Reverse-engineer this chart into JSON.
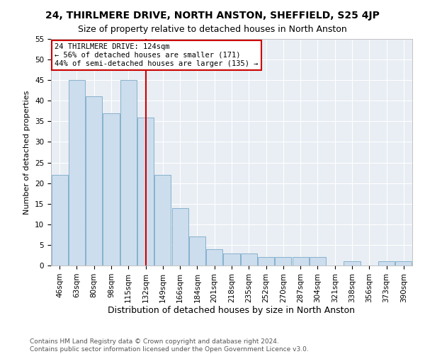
{
  "title": "24, THIRLMERE DRIVE, NORTH ANSTON, SHEFFIELD, S25 4JP",
  "subtitle": "Size of property relative to detached houses in North Anston",
  "xlabel": "Distribution of detached houses by size in North Anston",
  "ylabel": "Number of detached properties",
  "footnote1": "Contains HM Land Registry data © Crown copyright and database right 2024.",
  "footnote2": "Contains public sector information licensed under the Open Government Licence v3.0.",
  "categories": [
    "46sqm",
    "63sqm",
    "80sqm",
    "98sqm",
    "115sqm",
    "132sqm",
    "149sqm",
    "166sqm",
    "184sqm",
    "201sqm",
    "218sqm",
    "235sqm",
    "252sqm",
    "270sqm",
    "287sqm",
    "304sqm",
    "321sqm",
    "338sqm",
    "356sqm",
    "373sqm",
    "390sqm"
  ],
  "values": [
    22,
    45,
    41,
    37,
    45,
    36,
    22,
    14,
    7,
    4,
    3,
    3,
    2,
    2,
    2,
    2,
    0,
    1,
    0,
    1,
    1
  ],
  "bar_color": "#ccdded",
  "bar_edge_color": "#7aaac8",
  "vline_x_idx": 5,
  "vline_color": "#cc0000",
  "annotation_box_text": "24 THIRLMERE DRIVE: 124sqm\n← 56% of detached houses are smaller (171)\n44% of semi-detached houses are larger (135) →",
  "annotation_box_color": "#cc0000",
  "ylim_max": 55,
  "yticks": [
    0,
    5,
    10,
    15,
    20,
    25,
    30,
    35,
    40,
    45,
    50,
    55
  ],
  "bg_color": "#e8eef4",
  "grid_color": "#ffffff",
  "title_fontsize": 10,
  "xlabel_fontsize": 9,
  "ylabel_fontsize": 8,
  "tick_fontsize": 7.5,
  "annot_fontsize": 7.5,
  "footnote_fontsize": 6.5
}
